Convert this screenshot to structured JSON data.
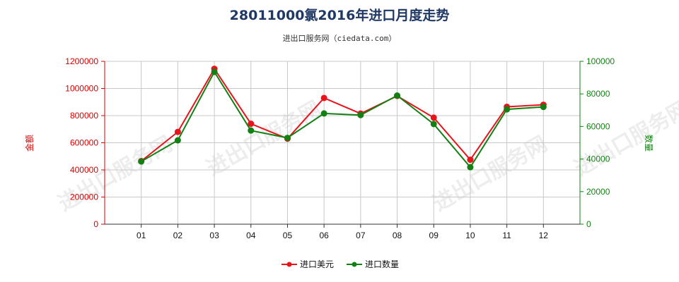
{
  "title": "28011000氯2016年进口月度走势",
  "subtitle": "进出口服务网（ciedata.com）",
  "watermark": "进出口服务网",
  "colors": {
    "series1": "#e8141c",
    "series2": "#138013",
    "left_axis": "#d40000",
    "right_axis": "#138013",
    "grid": "#c8c8c8"
  },
  "chart_data": {
    "type": "line",
    "title": "28011000氯2016年进口月度走势",
    "subtitle": "进出口服务网（ciedata.com）",
    "x": [
      "01",
      "02",
      "03",
      "04",
      "05",
      "06",
      "07",
      "08",
      "09",
      "10",
      "11",
      "12"
    ],
    "ylabel_left": "金额",
    "ylabel_right": "数量",
    "ylim_left": [
      0,
      1200000
    ],
    "ylim_right": [
      0,
      100000
    ],
    "yticks_left": [
      "0",
      "200000",
      "400000",
      "600000",
      "800000",
      "1000000",
      "1200000"
    ],
    "yticks_right": [
      "0",
      "20000",
      "40000",
      "60000",
      "80000",
      "100000"
    ],
    "grid": true,
    "legend_position": "bottom-center",
    "series": [
      {
        "name": "进口美元",
        "axis": "left",
        "color": "#e8141c",
        "values": [
          465000,
          680000,
          1145000,
          740000,
          630000,
          930000,
          815000,
          945000,
          785000,
          475000,
          865000,
          880000
        ]
      },
      {
        "name": "进口数量",
        "axis": "right",
        "color": "#138013",
        "values": [
          38500,
          51500,
          93500,
          57500,
          53000,
          68000,
          67000,
          79000,
          61500,
          35000,
          70500,
          72000
        ]
      }
    ]
  }
}
